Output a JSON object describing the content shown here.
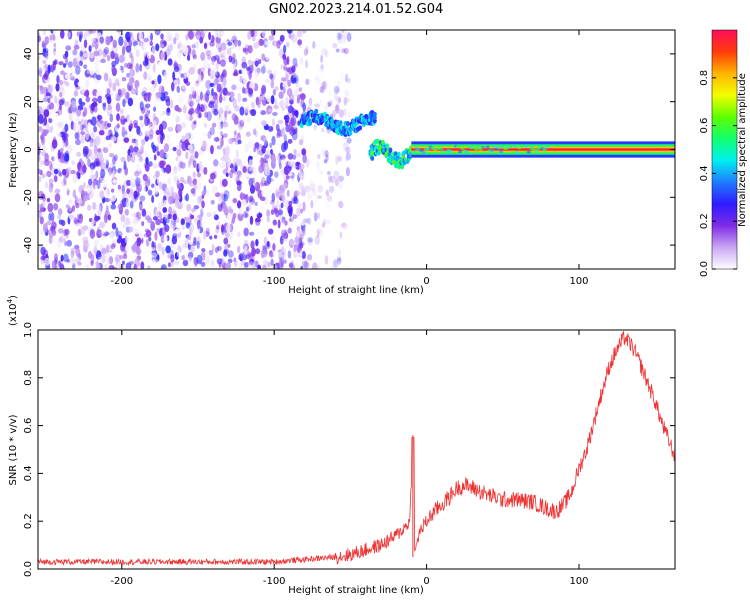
{
  "title": "GN02.2023.214.01.52.G04",
  "chart_data": [
    {
      "type": "heatmap",
      "xlabel": "Height of straight line (km)",
      "ylabel": "Frequency (Hz)",
      "xlim": [
        -255,
        163
      ],
      "ylim": [
        -50,
        50
      ],
      "xticks": [
        -200,
        -100,
        0,
        100
      ],
      "yticks": [
        -40,
        -20,
        0,
        20,
        40
      ],
      "colorbar": {
        "label": "Normalized spectral amplitude",
        "range": [
          0.0,
          1.0
        ],
        "ticks": [
          "0.0",
          "0.2",
          "0.4",
          "0.6",
          "0.8"
        ],
        "colors": [
          "#ffffff",
          "#c9a6f4",
          "#7f2be6",
          "#2f1bff",
          "#1e7cff",
          "#00f0f0",
          "#12ff6e",
          "#5dff00",
          "#f3ff00",
          "#ffb400",
          "#ff3b0a",
          "#ff0f5a"
        ]
      },
      "features": [
        {
          "x_range": [
            -255,
            -80
          ],
          "freq_range": [
            -50,
            50
          ],
          "amplitude": 0.15
        },
        {
          "x_range": [
            -82,
            -35
          ],
          "freq_range": [
            10,
            16
          ],
          "amplitude": 0.35
        },
        {
          "x_range": [
            -37,
            -10
          ],
          "freq_range": [
            -8,
            4
          ],
          "amplitude": 0.45
        },
        {
          "x_range": [
            -10,
            163
          ],
          "freq_range": [
            -1,
            1
          ],
          "amplitude": 0.95
        }
      ]
    },
    {
      "type": "line",
      "xlabel": "Height of straight line (km)",
      "ylabel": "SNR (10 * v/v)",
      "y_multiplier": "(x10",
      "y_multiplier_exp": "4",
      "y_multiplier_close": ")",
      "xlim": [
        -255,
        163
      ],
      "ylim": [
        0.0,
        1.0
      ],
      "xticks": [
        -200,
        -100,
        0,
        100
      ],
      "yticks": [
        "0.0",
        "0.2",
        "0.4",
        "0.6",
        "0.8",
        "1.0"
      ],
      "color": "#ee3333",
      "x": [
        -255,
        -200,
        -150,
        -100,
        -80,
        -60,
        -50,
        -40,
        -30,
        -20,
        -15,
        -11,
        -9,
        -8,
        -5,
        0,
        5,
        10,
        15,
        20,
        25,
        30,
        40,
        50,
        60,
        70,
        80,
        85,
        90,
        95,
        100,
        105,
        110,
        115,
        120,
        125,
        130,
        135,
        140,
        145,
        150,
        155,
        160,
        163
      ],
      "y": [
        0.03,
        0.03,
        0.03,
        0.03,
        0.04,
        0.05,
        0.06,
        0.08,
        0.1,
        0.14,
        0.17,
        0.2,
        0.55,
        0.05,
        0.15,
        0.2,
        0.24,
        0.27,
        0.3,
        0.34,
        0.35,
        0.34,
        0.31,
        0.29,
        0.29,
        0.28,
        0.25,
        0.24,
        0.27,
        0.32,
        0.42,
        0.5,
        0.62,
        0.74,
        0.85,
        0.92,
        0.97,
        0.93,
        0.86,
        0.78,
        0.7,
        0.6,
        0.52,
        0.47
      ]
    }
  ]
}
